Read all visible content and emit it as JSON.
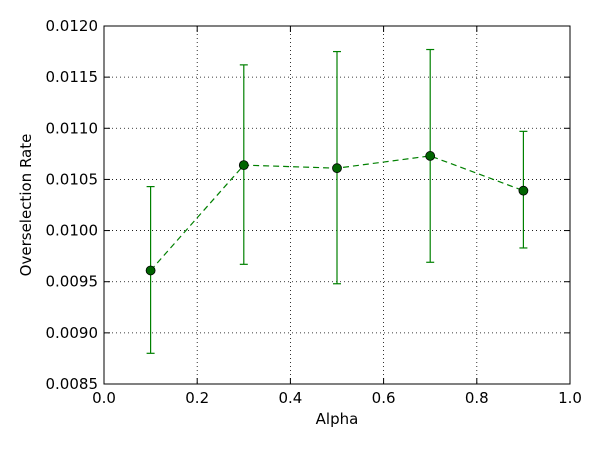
{
  "chart_data": {
    "type": "line",
    "title": "",
    "xlabel": "Alpha",
    "ylabel": "Overselection Rate",
    "xlim": [
      0.0,
      1.0
    ],
    "ylim": [
      0.0085,
      0.012
    ],
    "x_ticks": [
      "0.0",
      "0.2",
      "0.4",
      "0.6",
      "0.8",
      "1.0"
    ],
    "y_ticks": [
      "0.0085",
      "0.0090",
      "0.0095",
      "0.0100",
      "0.0105",
      "0.0110",
      "0.0115",
      "0.0120"
    ],
    "grid": true,
    "series": [
      {
        "x": [
          0.1,
          0.3,
          0.5,
          0.7,
          0.9
        ],
        "y": [
          0.00961,
          0.01064,
          0.01061,
          0.01073,
          0.01039
        ],
        "yerr_low": [
          0.0088,
          0.00967,
          0.00948,
          0.00969,
          0.00983
        ],
        "yerr_high": [
          0.01043,
          0.01162,
          0.01175,
          0.01177,
          0.01097
        ],
        "color": "#008000",
        "line_style": "dashed",
        "marker": "circle",
        "marker_face": "#006400"
      }
    ]
  }
}
